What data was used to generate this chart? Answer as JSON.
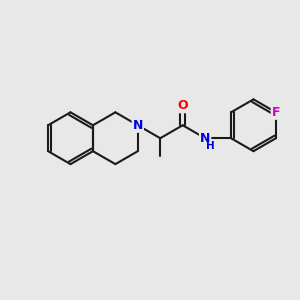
{
  "bg_color": "#e8e8e8",
  "bond_color": "#1a1a1a",
  "bond_width": 1.5,
  "atom_colors": {
    "N": "#0000e0",
    "O": "#ff0000",
    "F": "#cc00cc",
    "C": "#1a1a1a"
  },
  "font_size": 9,
  "bl": 0.88
}
